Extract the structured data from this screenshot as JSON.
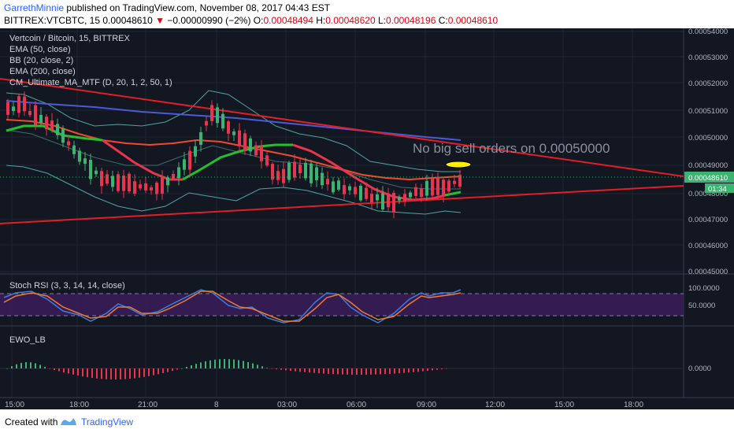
{
  "header": {
    "author": "GarrethMinnie",
    "published_text": "published on TradingView.com, November 08, 2017 04:43 EST",
    "symbol": "BITTREX:VTCBTC, 15",
    "price": "0.00048610",
    "change_arrow": "▼",
    "change": "−0.00000990 (−2%)",
    "o_label": "O:",
    "o_value": "0.00048494",
    "h_label": "H:",
    "h_value": "0.00048620",
    "l_label": "L:",
    "l_value": "0.00048196",
    "c_label": "C:",
    "c_value": "0.00048610"
  },
  "legend": {
    "title": "Vertcoin / Bitcoin, 15, BITTREX",
    "ema50": "EMA (50, close)",
    "bb": "BB (20, close, 2)",
    "ema200": "EMA (200, close)",
    "cm": "CM_Ultimate_MA_MTF (D, 20, 1, 2, 50, 1)"
  },
  "annotation": "No big sell orders on 0.00050000",
  "price_axis": {
    "ticks": [
      "0.00054000",
      "0.00053000",
      "0.00052000",
      "0.00051000",
      "0.00050000",
      "0.00049000",
      "0.00048000",
      "0.00047000",
      "0.00046000",
      "0.00045000"
    ],
    "current_price_label": "0.00048610",
    "countdown_label": "01:34"
  },
  "stoch_rsi": {
    "label": "Stoch RSI (3, 3, 14, 14, close)",
    "ticks": [
      "100.0000",
      "50.0000"
    ]
  },
  "ewo": {
    "label": "EWO_LB",
    "ticks": [
      "0.0000"
    ]
  },
  "time_axis": {
    "ticks": [
      "15:00",
      "18:00",
      "21:00",
      "8",
      "03:00",
      "06:00",
      "09:00",
      "12:00",
      "15:00",
      "18:00"
    ]
  },
  "footer": {
    "created_with": "Created with",
    "brand": "TradingView"
  },
  "colors": {
    "background": "#131722",
    "up_candle": "#3cb371",
    "down_candle": "#e8344e",
    "trendline": "#e01f26",
    "ema50": "#f04a2c",
    "ema200": "#4a5bd8",
    "cm_ma": "#22c02a",
    "bollinger": "#4fa5a0",
    "stoch_k": "#3b7ddd",
    "stoch_d": "#f07a30",
    "highlight": "#ffef00"
  }
}
